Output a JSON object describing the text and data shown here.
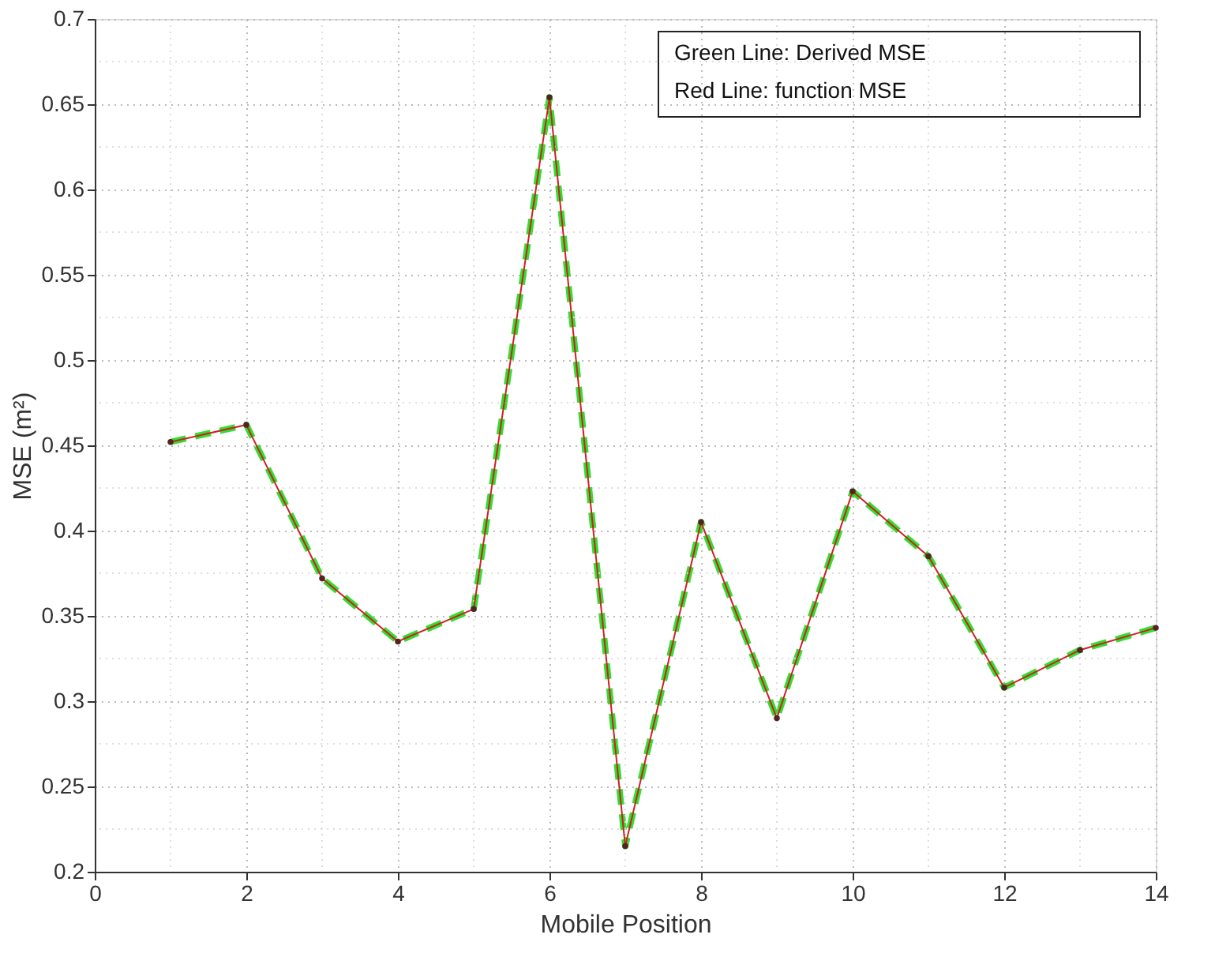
{
  "chart_data": {
    "type": "line",
    "x": [
      1,
      2,
      3,
      4,
      5,
      6,
      7,
      8,
      9,
      10,
      11,
      12,
      13,
      14
    ],
    "series": [
      {
        "color": "#cc2222",
        "line_style": "solid",
        "marker": "circle",
        "values": [
          0.452,
          0.462,
          0.372,
          0.335,
          0.354,
          0.654,
          0.215,
          0.405,
          0.29,
          0.423,
          0.385,
          0.308,
          0.33,
          0.343
        ]
      },
      {
        "color": "#33dd33",
        "line_style": "dashed",
        "marker": "none",
        "values": [
          0.452,
          0.462,
          0.372,
          0.335,
          0.354,
          0.654,
          0.215,
          0.405,
          0.29,
          0.423,
          0.385,
          0.308,
          0.33,
          0.343
        ]
      }
    ],
    "xlabel": "Mobile Position",
    "ylabel": "MSE (m²)",
    "xlim": [
      0,
      14
    ],
    "xticks": [
      0,
      2,
      4,
      6,
      8,
      10,
      12,
      14
    ],
    "ylim": [
      0.2,
      0.7
    ],
    "yticks": [
      0.2,
      0.25,
      0.3,
      0.35,
      0.4,
      0.45,
      0.5,
      0.55,
      0.6,
      0.65,
      0.7
    ],
    "grid": true,
    "annotations": [
      "Green Line: Derived MSE",
      "Red Line: function MSE"
    ]
  }
}
